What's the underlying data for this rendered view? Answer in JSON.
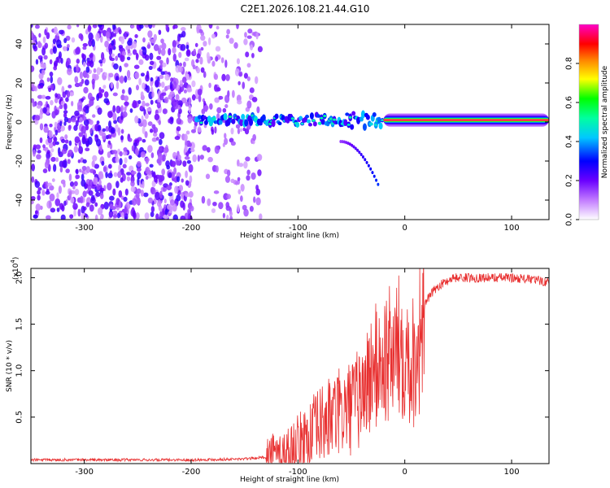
{
  "title": "C2E1.2026.108.21.44.G10",
  "chart_data": [
    {
      "type": "heatmap",
      "name": "spectrogram",
      "xlabel": "Height of straight line (km)",
      "ylabel": "Frequency (Hz)",
      "xlim": [
        -350,
        135
      ],
      "ylim": [
        -50,
        50
      ],
      "xticks": [
        -300,
        -200,
        -100,
        0,
        100
      ],
      "yticks": [
        -40,
        -20,
        0,
        20,
        40
      ],
      "colorbar": {
        "label": "Normalized spectral amplitude",
        "range": [
          0.0,
          1.0
        ],
        "ticks": [
          0.0,
          0.2,
          0.4,
          0.6,
          0.8
        ],
        "tick_labels": [
          "0.0",
          "0.2",
          "0.4",
          "0.6",
          "0.8"
        ],
        "colors": [
          "#ffffff",
          "#8000ff",
          "#0000ff",
          "#00ffff",
          "#00ff00",
          "#ffff00",
          "#ff8000",
          "#ff0000",
          "#ff00ff"
        ]
      },
      "features": [
        {
          "description_x_range": [
            -350,
            -135
          ],
          "freq_range": [
            -50,
            50
          ],
          "amplitude": 0.15,
          "kind": "broadband noise"
        },
        {
          "description_x_range": [
            -195,
            -20
          ],
          "freq_center": 1,
          "amplitude": 0.3,
          "kind": "emerging tone"
        },
        {
          "description_x_range": [
            -20,
            135
          ],
          "freq_center": 1,
          "amplitude": 0.95,
          "kind": "carrier line"
        },
        {
          "description_x_range": [
            -60,
            -25
          ],
          "freq_range": [
            -10,
            -32
          ],
          "amplitude": 0.3,
          "kind": "descending trace"
        }
      ]
    },
    {
      "type": "line",
      "name": "snr",
      "xlabel": "Height of straight line (km)",
      "ylabel": "SNR (10 * v/v)",
      "yscale_label": "(x10",
      "yscale_exp": "4",
      "yscale_close": ")",
      "xlim": [
        -350,
        135
      ],
      "ylim": [
        0,
        2.1
      ],
      "xticks": [
        -300,
        -200,
        -100,
        0,
        100
      ],
      "yticks": [
        0.5,
        1.0,
        1.5,
        2.0
      ],
      "ytick_labels": [
        "0.5",
        "1.0",
        "1.5",
        "2.0"
      ],
      "color": "#e83030",
      "series": [
        {
          "name": "SNR",
          "x": [
            -350,
            -200,
            -150,
            -120,
            -105,
            -90,
            -75,
            -60,
            -50,
            -40,
            -30,
            -20,
            -10,
            0,
            5,
            10,
            20,
            30,
            45,
            60,
            80,
            100,
            120,
            135
          ],
          "values": [
            0.04,
            0.04,
            0.05,
            0.08,
            0.14,
            0.3,
            0.45,
            0.55,
            0.6,
            0.75,
            1.0,
            1.1,
            1.2,
            1.3,
            1.1,
            1.15,
            1.75,
            1.9,
            2.0,
            2.0,
            2.0,
            2.0,
            1.98,
            1.95
          ]
        }
      ]
    }
  ]
}
